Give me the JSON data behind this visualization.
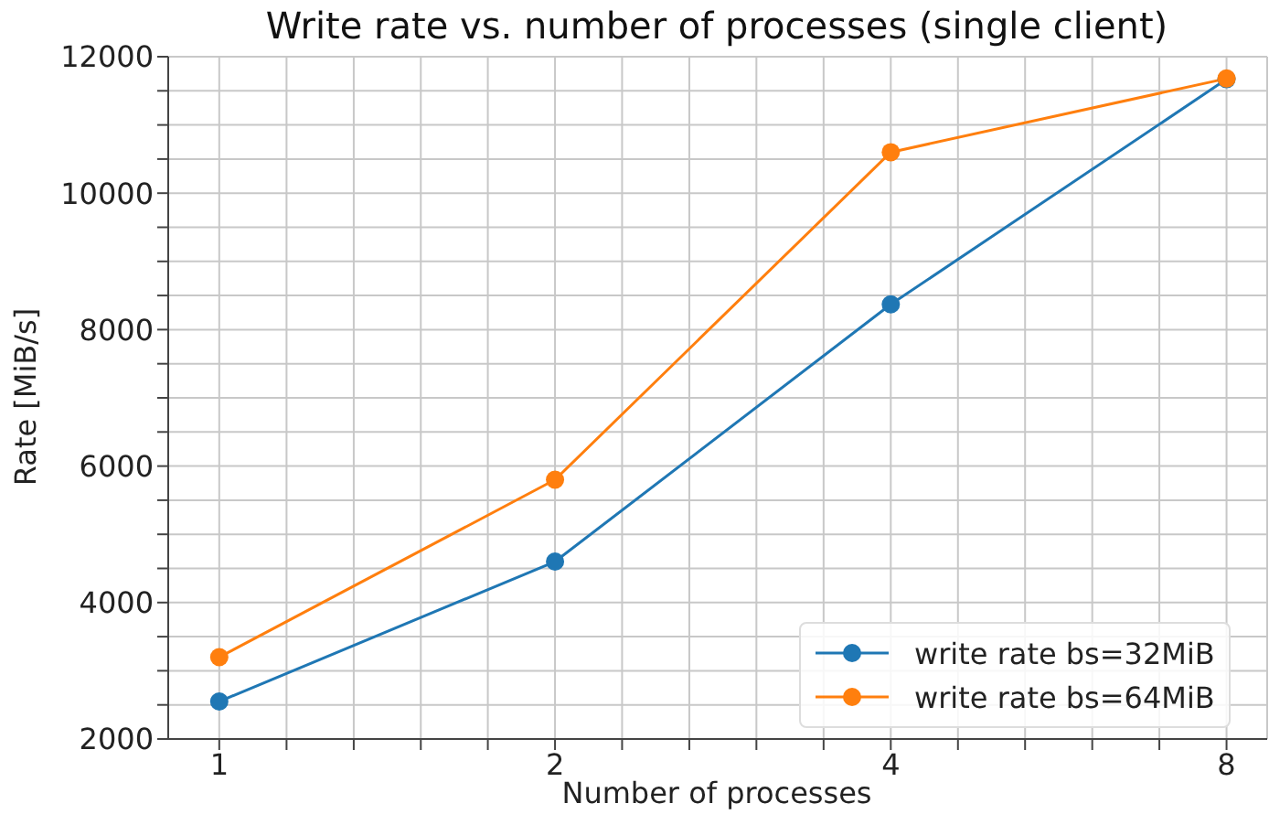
{
  "chart_data": {
    "type": "line",
    "title": "Write rate vs. number of processes (single client)",
    "xlabel": "Number of processes",
    "ylabel": "Rate [MiB/s]",
    "x": [
      1,
      2,
      4,
      8
    ],
    "series": [
      {
        "name": "write rate bs=32MiB",
        "color": "#1f77b4",
        "values": [
          2550,
          4600,
          8370,
          11670
        ]
      },
      {
        "name": "write rate bs=64MiB",
        "color": "#ff7f0e",
        "values": [
          3200,
          5800,
          10600,
          11680
        ]
      }
    ],
    "log": "x",
    "xlim": [
      0.9,
      8.7
    ],
    "xticks": [
      1,
      {
        "value": 1.149,
        "label": null
      },
      {
        "value": 1.32,
        "label": null
      },
      {
        "value": 1.516,
        "label": null
      },
      {
        "value": 1.741,
        "label": null
      },
      2,
      {
        "value": 2.297,
        "label": null
      },
      {
        "value": 2.639,
        "label": null
      },
      {
        "value": 3.031,
        "label": null
      },
      {
        "value": 3.482,
        "label": null
      },
      4,
      {
        "value": 4.595,
        "label": null
      },
      {
        "value": 5.278,
        "label": null
      },
      {
        "value": 6.063,
        "label": null
      },
      {
        "value": 6.964,
        "label": null
      },
      8
    ],
    "ylim": [
      2000,
      12000
    ],
    "yticks": [
      2000,
      {
        "value": 2500,
        "label": null
      },
      {
        "value": 3000,
        "label": null
      },
      {
        "value": 3500,
        "label": null
      },
      4000,
      {
        "value": 4500,
        "label": null
      },
      {
        "value": 5000,
        "label": null
      },
      {
        "value": 5500,
        "label": null
      },
      6000,
      {
        "value": 6500,
        "label": null
      },
      {
        "value": 7000,
        "label": null
      },
      {
        "value": 7500,
        "label": null
      },
      8000,
      {
        "value": 8500,
        "label": null
      },
      {
        "value": 9000,
        "label": null
      },
      {
        "value": 9500,
        "label": null
      },
      10000,
      {
        "value": 10500,
        "label": null
      },
      {
        "value": 11000,
        "label": null
      },
      {
        "value": 11500,
        "label": null
      },
      12000
    ],
    "grid": true,
    "legend": "bottom right",
    "marker": "circle",
    "line_style": "solid"
  }
}
